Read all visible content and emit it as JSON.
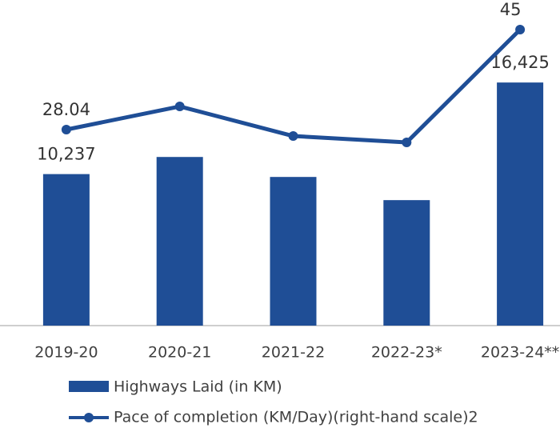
{
  "chart_data": {
    "type": "bar-line",
    "categories": [
      "2019-20",
      "2020-21",
      "2021-22",
      "2022-23*",
      "2023-24**"
    ],
    "series": [
      {
        "name": "Highways Laid (in KM)",
        "type": "bar",
        "color": "#1f4e96",
        "values": [
          10237,
          11394,
          10044,
          8478,
          16425
        ],
        "value_labels": [
          "10,237",
          null,
          null,
          null,
          "16,425"
        ]
      },
      {
        "name": "Pace of completion (KM/Day)(right-hand scale)2",
        "type": "line",
        "axis": "y2",
        "color": "#1f4e96",
        "values": [
          28.04,
          31.97,
          26.95,
          25.87,
          45
        ],
        "value_labels": [
          "28.04",
          null,
          null,
          null,
          "45"
        ]
      }
    ],
    "ylim": [
      0,
      20000
    ],
    "y2lim": [
      -5.2,
      45
    ]
  }
}
